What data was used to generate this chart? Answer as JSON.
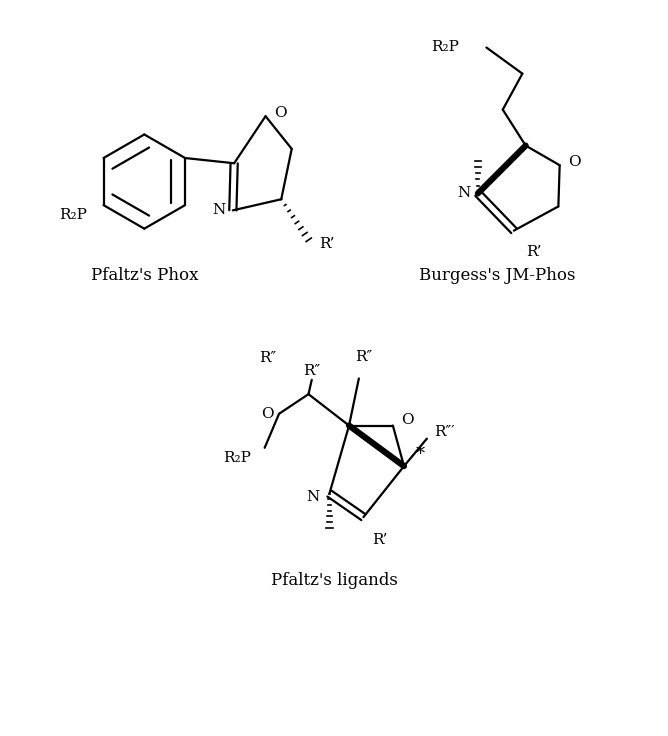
{
  "background_color": "#ffffff",
  "label1": "Pfaltz's Phox",
  "label2": "Burgess's JM-Phos",
  "label3": "Pfaltz's ligands",
  "figsize": [
    6.68,
    7.36
  ],
  "dpi": 100,
  "line_color": "#000000",
  "line_width": 1.6,
  "font_size": 11,
  "label_font_size": 12
}
